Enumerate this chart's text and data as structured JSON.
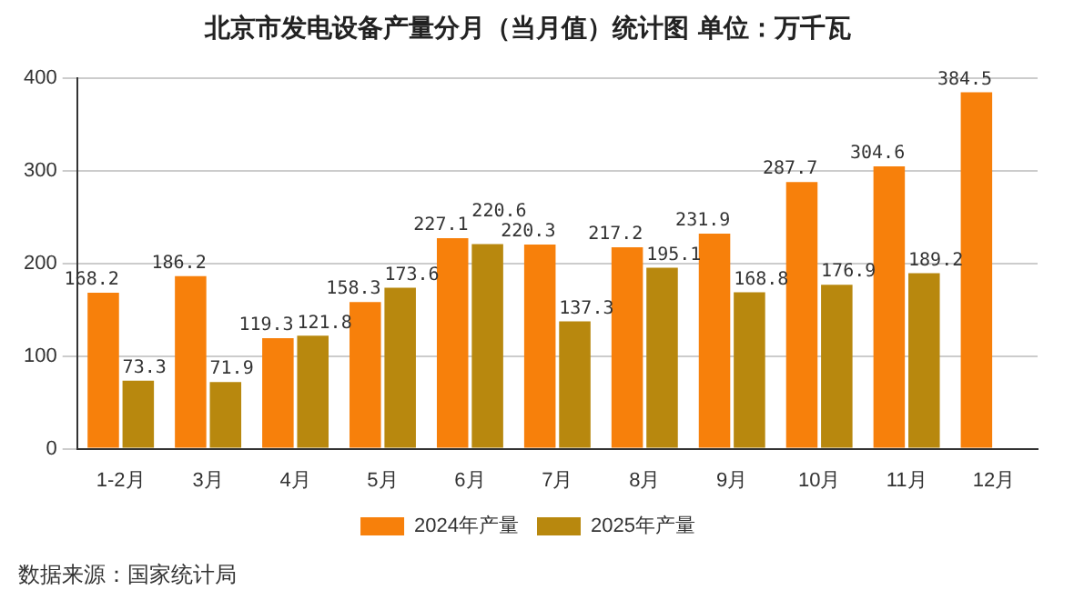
{
  "chart_data": {
    "type": "bar",
    "title": "北京市发电设备产量分月（当月值）统计图 单位：万千瓦",
    "categories": [
      "1-2月",
      "3月",
      "4月",
      "5月",
      "6月",
      "7月",
      "8月",
      "9月",
      "10月",
      "11月",
      "12月"
    ],
    "series": [
      {
        "name": "2024年产量",
        "color": "#f7800b",
        "values": [
          168.2,
          186.2,
          119.3,
          158.3,
          227.1,
          220.3,
          217.2,
          231.9,
          287.7,
          304.6,
          384.5
        ]
      },
      {
        "name": "2025年产量",
        "color": "#b8880e",
        "values": [
          73.3,
          71.9,
          121.8,
          173.6,
          220.6,
          137.3,
          195.1,
          168.8,
          176.9,
          189.2,
          null
        ]
      }
    ],
    "ylim": [
      0,
      400
    ],
    "yticks": [
      0,
      100,
      200,
      300,
      400
    ],
    "grid": "y",
    "legend": "bottom",
    "data_labels": true,
    "annotations": [
      "数据来源：国家统计局"
    ]
  }
}
